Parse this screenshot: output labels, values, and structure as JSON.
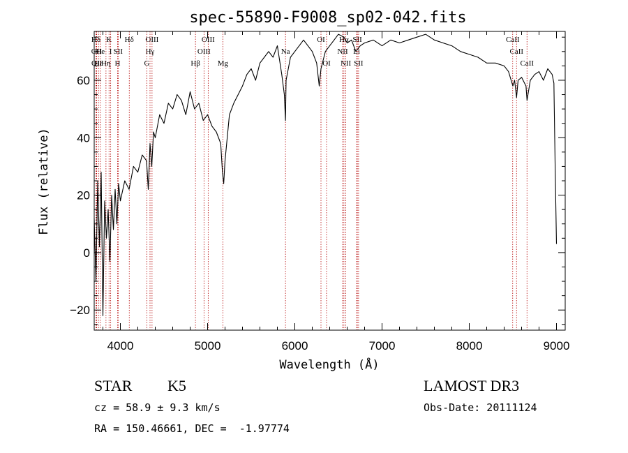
{
  "chart_data": {
    "type": "line",
    "title": "spec-55890-F9008_sp02-042.fits",
    "xlabel": "Wavelength (Å)",
    "ylabel": "Flux (relative)",
    "xlim": [
      3700,
      9100
    ],
    "ylim": [
      -27,
      77
    ],
    "x_ticks": [
      4000,
      5000,
      6000,
      7000,
      8000,
      9000
    ],
    "y_ticks": [
      -20,
      0,
      20,
      40,
      60
    ],
    "series": [
      {
        "name": "flux",
        "x": [
          3700,
          3720,
          3740,
          3760,
          3780,
          3800,
          3820,
          3840,
          3860,
          3880,
          3900,
          3920,
          3940,
          3960,
          3980,
          4000,
          4050,
          4100,
          4150,
          4200,
          4250,
          4300,
          4320,
          4340,
          4360,
          4380,
          4400,
          4450,
          4500,
          4550,
          4600,
          4650,
          4700,
          4750,
          4800,
          4850,
          4900,
          4950,
          5000,
          5050,
          5100,
          5150,
          5170,
          5185,
          5200,
          5250,
          5300,
          5350,
          5400,
          5450,
          5500,
          5550,
          5600,
          5650,
          5700,
          5750,
          5800,
          5850,
          5880,
          5893,
          5900,
          5950,
          6000,
          6050,
          6100,
          6150,
          6200,
          6250,
          6280,
          6300,
          6350,
          6400,
          6450,
          6500,
          6563,
          6600,
          6650,
          6700,
          6750,
          6800,
          6900,
          7000,
          7100,
          7200,
          7300,
          7400,
          7500,
          7600,
          7700,
          7800,
          7900,
          8000,
          8100,
          8200,
          8300,
          8400,
          8450,
          8500,
          8520,
          8542,
          8560,
          8600,
          8650,
          8662,
          8700,
          8750,
          8800,
          8850,
          8900,
          8950,
          8970,
          8985,
          9000
        ],
        "y": [
          12,
          -10,
          25,
          2,
          28,
          -22,
          18,
          5,
          15,
          -3,
          20,
          8,
          22,
          10,
          24,
          18,
          25,
          22,
          30,
          28,
          34,
          32,
          22,
          38,
          30,
          42,
          40,
          48,
          45,
          52,
          50,
          55,
          53,
          48,
          56,
          50,
          52,
          46,
          48,
          44,
          42,
          38,
          28,
          24,
          32,
          48,
          52,
          55,
          58,
          62,
          64,
          60,
          66,
          68,
          70,
          68,
          72,
          62,
          55,
          46,
          60,
          68,
          70,
          72,
          74,
          72,
          70,
          66,
          58,
          64,
          70,
          72,
          74,
          76,
          75,
          73,
          74,
          70,
          72,
          73,
          74,
          72,
          74,
          73,
          74,
          75,
          76,
          74,
          73,
          72,
          70,
          69,
          68,
          66,
          66,
          65,
          63,
          58,
          60,
          54,
          60,
          61,
          58,
          53,
          60,
          62,
          63,
          60,
          64,
          62,
          59,
          30,
          3
        ]
      }
    ],
    "line_markers": [
      {
        "label": "Hδ",
        "x": 3720,
        "row": 0
      },
      {
        "label": "OII",
        "x": 3727,
        "row": 1
      },
      {
        "label": "OII",
        "x": 3729,
        "row": 2
      },
      {
        "label": "Hε",
        "x": 3750,
        "row": 2
      },
      {
        "label": "He",
        "x": 3770,
        "row": 1
      },
      {
        "label": "Hη",
        "x": 3835,
        "row": 2
      },
      {
        "label": "K",
        "x": 3870,
        "row": 0
      },
      {
        "label": "I",
        "x": 3889,
        "row": 1
      },
      {
        "label": "H",
        "x": 3968,
        "row": 2
      },
      {
        "label": "SII",
        "x": 3975,
        "row": 1
      },
      {
        "label": "Hδ",
        "x": 4102,
        "row": 0
      },
      {
        "label": "OIII",
        "x": 4363,
        "row": 0
      },
      {
        "label": "Hγ",
        "x": 4340,
        "row": 1
      },
      {
        "label": "G",
        "x": 4304,
        "row": 2
      },
      {
        "label": "Hβ",
        "x": 4861,
        "row": 2
      },
      {
        "label": "OIII",
        "x": 5007,
        "row": 0
      },
      {
        "label": "OIII",
        "x": 4959,
        "row": 1
      },
      {
        "label": "Mg",
        "x": 5175,
        "row": 2
      },
      {
        "label": "Na",
        "x": 5893,
        "row": 1
      },
      {
        "label": "OI",
        "x": 6300,
        "row": 0
      },
      {
        "label": "OI",
        "x": 6364,
        "row": 2
      },
      {
        "label": "Hα",
        "x": 6563,
        "row": 0
      },
      {
        "label": "NII",
        "x": 6548,
        "row": 1
      },
      {
        "label": "NII",
        "x": 6584,
        "row": 2
      },
      {
        "label": "SII",
        "x": 6717,
        "row": 0
      },
      {
        "label": "Li",
        "x": 6708,
        "row": 1
      },
      {
        "label": "SII",
        "x": 6731,
        "row": 2
      },
      {
        "label": "CaII",
        "x": 8498,
        "row": 0
      },
      {
        "label": "CaII",
        "x": 8542,
        "row": 1
      },
      {
        "label": "CaII",
        "x": 8662,
        "row": 2
      }
    ]
  },
  "info": {
    "object_class": "STAR",
    "subclass": "K5",
    "survey": "LAMOST DR3",
    "redshift": "cz = 58.9 ± 9.3 km/s",
    "obs_date": "Obs-Date: 20111124",
    "coords": "RA = 150.46661, DEC =  -1.97774"
  }
}
